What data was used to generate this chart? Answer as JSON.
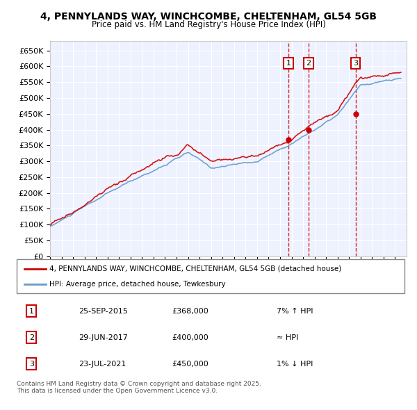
{
  "title": "4, PENNYLANDS WAY, WINCHCOMBE, CHELTENHAM, GL54 5GB",
  "subtitle": "Price paid vs. HM Land Registry's House Price Index (HPI)",
  "ylabel_ticks": [
    0,
    50000,
    100000,
    150000,
    200000,
    250000,
    300000,
    350000,
    400000,
    450000,
    500000,
    550000,
    600000,
    650000
  ],
  "ylim": [
    0,
    680000
  ],
  "xlim": [
    1995,
    2026
  ],
  "line1_color": "#cc0000",
  "line2_color": "#6699cc",
  "sale_dates": [
    2015.73,
    2017.49,
    2021.56
  ],
  "sale_prices": [
    368000,
    400000,
    450000
  ],
  "sale_labels": [
    "1",
    "2",
    "3"
  ],
  "legend_line1": "4, PENNYLANDS WAY, WINCHCOMBE, CHELTENHAM, GL54 5GB (detached house)",
  "legend_line2": "HPI: Average price, detached house, Tewkesbury",
  "table_entries": [
    [
      "1",
      "25-SEP-2015",
      "£368,000",
      "7% ↑ HPI"
    ],
    [
      "2",
      "29-JUN-2017",
      "£400,000",
      "≈ HPI"
    ],
    [
      "3",
      "23-JUL-2021",
      "£450,000",
      "1% ↓ HPI"
    ]
  ],
  "footnote": "Contains HM Land Registry data © Crown copyright and database right 2025.\nThis data is licensed under the Open Government Licence v3.0.",
  "background_color": "#ffffff",
  "plot_bg_color": "#eef2ff"
}
